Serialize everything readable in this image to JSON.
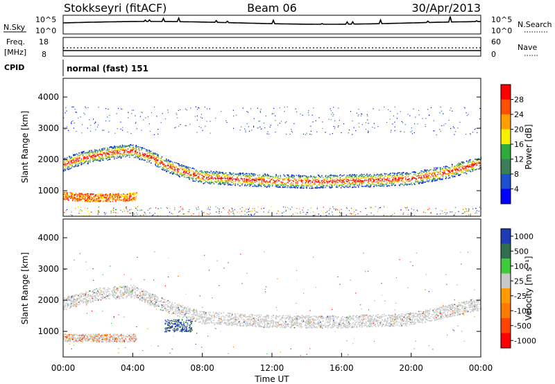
{
  "header": {
    "title": "Stokkseyri (fitACF)",
    "beam": "Beam 06",
    "date": "30/Apr/2013",
    "cpid_label": "CPID",
    "cpid_value": "normal (fast) 151"
  },
  "top_panels": {
    "nsky_label": "N.Sky",
    "nsearch_label": "N.Search",
    "noise_tick_top": "10^5",
    "noise_tick_bottom": "10^0",
    "freq_label_line1": "Freq.",
    "freq_label_line2": "[MHz]",
    "freq_ticks": [
      "18",
      "8"
    ],
    "nave_label": "Nave",
    "nave_ticks": [
      "60",
      "0"
    ]
  },
  "chart_data": [
    {
      "type": "heatmap",
      "title": "Power",
      "xlabel": "Time UT",
      "ylabel": "Slant Range [km]",
      "xlim": [
        0,
        24
      ],
      "ylim": [
        180,
        4600
      ],
      "x_ticks": [
        "00:00",
        "04:00",
        "08:00",
        "12:00",
        "16:00",
        "20:00",
        "00:00"
      ],
      "y_ticks": [
        1000,
        2000,
        3000,
        4000
      ],
      "colorbar": {
        "label": "Power [dB]",
        "ticks": [
          4,
          8,
          12,
          16,
          20,
          24,
          28
        ],
        "colors": [
          "#0000ff",
          "#1e4fd0",
          "#3a7f5a",
          "#2faa3c",
          "#f7f000",
          "#ffa000",
          "#ff5000",
          "#ff0000"
        ]
      },
      "features": [
        {
          "name": "main_band",
          "times_h": [
            0,
            1,
            2,
            3,
            4,
            5,
            6,
            7,
            8,
            10,
            12,
            14,
            16,
            18,
            20,
            22,
            24
          ],
          "range_km": [
            1850,
            2050,
            2150,
            2250,
            2300,
            2100,
            1800,
            1600,
            1450,
            1380,
            1330,
            1300,
            1320,
            1350,
            1400,
            1600,
            1900
          ]
        },
        {
          "name": "near_range",
          "times_h": [
            0,
            1,
            2,
            3,
            4
          ],
          "range_km": [
            850,
            800,
            790,
            800,
            820
          ]
        }
      ]
    },
    {
      "type": "heatmap",
      "title": "Velocity",
      "xlabel": "Time UT",
      "ylabel": "Slant Range [km]",
      "xlim": [
        0,
        24
      ],
      "ylim": [
        180,
        4600
      ],
      "x_ticks": [
        "00:00",
        "04:00",
        "08:00",
        "12:00",
        "16:00",
        "20:00",
        "00:00"
      ],
      "y_ticks": [
        1000,
        2000,
        3000,
        4000
      ],
      "colorbar": {
        "label": "Velocity [m s⁻¹]",
        "ticks": [
          "1000",
          "500",
          "100",
          "25",
          "-25",
          "-100",
          "-500",
          "-1000"
        ],
        "colors": [
          "#1e3cb4",
          "#2f6e4e",
          "#3fcc3a",
          "#c8c8c8",
          "#ff9a00",
          "#ff7800",
          "#ff4500",
          "#ff0000"
        ]
      },
      "features": [
        {
          "name": "ground_scatter_band",
          "times_h": [
            0,
            2,
            4,
            6,
            8,
            12,
            16,
            20,
            24
          ],
          "range_km": [
            1900,
            2200,
            2300,
            1800,
            1450,
            1330,
            1320,
            1400,
            1900
          ]
        }
      ]
    }
  ]
}
